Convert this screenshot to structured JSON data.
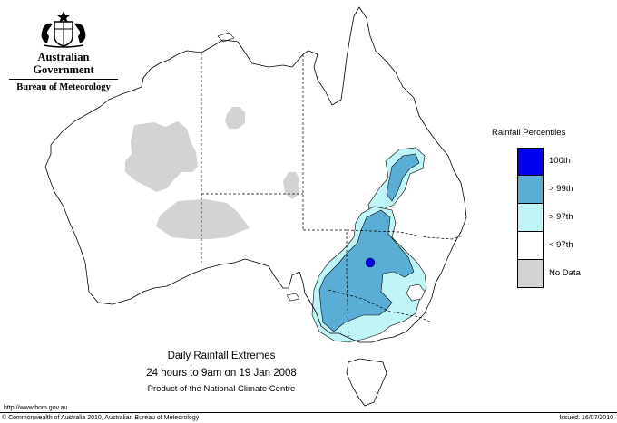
{
  "header": {
    "government": "Australian Government",
    "bureau": "Bureau of Meteorology",
    "crest_icon": "coat-of-arms-icon"
  },
  "legend": {
    "title": "Rainfall Percentiles",
    "items": [
      {
        "label": "100th",
        "color": "#0000ee"
      },
      {
        "label": "> 99th",
        "color": "#5aaed6"
      },
      {
        "label": "> 97th",
        "color": "#bff5f7"
      },
      {
        "label": "< 97th",
        "color": "#ffffff"
      },
      {
        "label": "No Data",
        "color": "#d3d3d3"
      }
    ]
  },
  "caption": {
    "line1": "Daily Rainfall Extremes",
    "line2": "24 hours to 9am on 19 Jan 2008",
    "line3": "Product of the National Climate Centre"
  },
  "footer": {
    "url": "http://www.bom.gov.au",
    "copyright": "© Commonwealth of Australia 2010, Australian Bureau of Meteorology",
    "issued": "Issued: 16/07/2010"
  }
}
